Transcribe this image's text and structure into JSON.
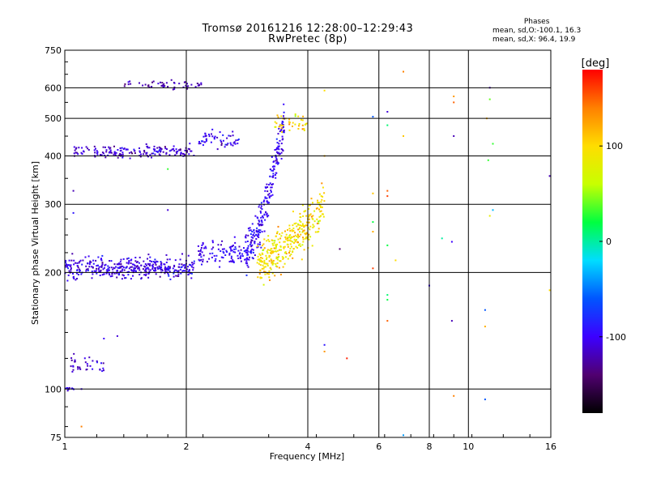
{
  "header": {
    "title_line1": "Tromsø 20161216 12:28:00–12:29:43",
    "title_line2": "RwPretec (8p)"
  },
  "stats": {
    "heading": "Phases",
    "line1": "mean, sd,O:-100.1, 16.3",
    "line2": "mean, sd,X:  96.4, 19.9"
  },
  "colorbar": {
    "label": "[deg]",
    "ticks": [
      "100",
      "0",
      "-100"
    ],
    "tick_values": [
      100,
      0,
      -100
    ],
    "range": [
      -180,
      180
    ],
    "colors": [
      "#000000",
      "#500070",
      "#3c00ff",
      "#0055ff",
      "#00ddff",
      "#00ff40",
      "#c8ff00",
      "#ffdd00",
      "#ff8000",
      "#ff0000"
    ]
  },
  "chart_data": {
    "type": "scatter",
    "title": "Tromsø 20161216 12:28:00–12:29:43\nRwPretec (8p)",
    "xlabel": "Frequency [MHz]",
    "ylabel": "Stationary phase Virtual Height [km]",
    "x_scale": "log",
    "y_scale": "log",
    "xlim": [
      1,
      16
    ],
    "ylim": [
      75,
      750
    ],
    "x_ticks": [
      1,
      2,
      4,
      6,
      8,
      10,
      16
    ],
    "y_ticks": [
      75,
      100,
      200,
      300,
      400,
      500,
      600,
      750
    ],
    "grid": true,
    "traces": [
      {
        "name": "",
        "x_range": [
          1.0,
          2.1
        ],
        "h_center": 205,
        "h_jitter": 0.06,
        "phase": -105,
        "phase_sd": 12,
        "count": 380
      },
      {
        "name": "",
        "x_range": [
          2.1,
          2.9
        ],
        "h_center": 225,
        "h_jitter": 0.07,
        "phase": -100,
        "phase_sd": 10,
        "count": 110
      },
      {
        "name": "",
        "x_range": [
          1.05,
          2.1
        ],
        "h_center": 410,
        "h_jitter": 0.035,
        "phase": -110,
        "phase_sd": 12,
        "count": 170
      },
      {
        "name": "",
        "x_range": [
          2.15,
          2.7
        ],
        "h_center": 440,
        "h_jitter": 0.05,
        "phase": -100,
        "phase_sd": 12,
        "count": 55
      },
      {
        "name": "",
        "x_range": [
          1.4,
          2.2
        ],
        "h_center": 610,
        "h_jitter": 0.025,
        "phase": -120,
        "phase_sd": 10,
        "count": 50
      },
      {
        "name": "",
        "x_range": [
          2.8,
          3.5
        ],
        "h_center_range": [
          230,
          490
        ],
        "h_jitter": 0.12,
        "phase": -100,
        "phase_sd": 10,
        "count": 230
      },
      {
        "name": "",
        "x_range": [
          3.0,
          4.4
        ],
        "h_center_range": [
          215,
          300
        ],
        "h_jitter": 0.12,
        "phase": 95,
        "phase_sd": 18,
        "count": 340
      },
      {
        "name": "",
        "x_range": [
          3.3,
          4.0
        ],
        "h_center": 480,
        "h_jitter": 0.06,
        "phase": 100,
        "phase_sd": 20,
        "count": 40
      },
      {
        "name": "",
        "x_range": [
          1.02,
          1.25
        ],
        "h_center": 115,
        "h_jitter": 0.05,
        "phase": -110,
        "phase_sd": 10,
        "count": 35
      },
      {
        "name": "",
        "x_range": [
          1.0,
          1.06
        ],
        "h_center": 100,
        "h_jitter": 0.01,
        "phase": -100,
        "phase_sd": 10,
        "count": 12
      }
    ],
    "sparse_points": [
      [
        5.8,
        505,
        -60
      ],
      [
        6.3,
        520,
        -110
      ],
      [
        6.3,
        480,
        10
      ],
      [
        6.9,
        450,
        110
      ],
      [
        6.9,
        660,
        140
      ],
      [
        9.2,
        570,
        130
      ],
      [
        9.2,
        550,
        150
      ],
      [
        9.2,
        450,
        -120
      ],
      [
        11.3,
        600,
        -120
      ],
      [
        11.3,
        560,
        40
      ],
      [
        11.1,
        500,
        120
      ],
      [
        11.5,
        430,
        30
      ],
      [
        11.2,
        390,
        30
      ],
      [
        11.5,
        290,
        -30
      ],
      [
        11.3,
        280,
        80
      ],
      [
        6.3,
        325,
        150
      ],
      [
        6.3,
        315,
        160
      ],
      [
        5.8,
        320,
        110
      ],
      [
        5.8,
        270,
        20
      ],
      [
        5.8,
        255,
        120
      ],
      [
        6.3,
        235,
        20
      ],
      [
        6.3,
        175,
        10
      ],
      [
        6.3,
        170,
        20
      ],
      [
        6.3,
        150,
        150
      ],
      [
        8.0,
        185,
        -100
      ],
      [
        8.6,
        245,
        0
      ],
      [
        9.1,
        240,
        -100
      ],
      [
        9.1,
        150,
        -120
      ],
      [
        11.0,
        160,
        -60
      ],
      [
        11.0,
        145,
        120
      ],
      [
        6.6,
        215,
        100
      ],
      [
        5.8,
        205,
        160
      ],
      [
        4.8,
        230,
        -140
      ],
      [
        4.4,
        400,
        120
      ],
      [
        4.4,
        590,
        100
      ],
      [
        4.4,
        130,
        -90
      ],
      [
        4.4,
        125,
        130
      ],
      [
        5.0,
        120,
        170
      ],
      [
        9.2,
        96,
        140
      ],
      [
        11.0,
        94,
        -60
      ],
      [
        6.9,
        76,
        -40
      ],
      [
        15.9,
        355,
        -120
      ],
      [
        15.9,
        180,
        100
      ],
      [
        1.8,
        370,
        30
      ],
      [
        1.8,
        290,
        -110
      ],
      [
        1.1,
        100,
        -100
      ],
      [
        1.1,
        80,
        140
      ],
      [
        1.35,
        137,
        -110
      ],
      [
        1.25,
        135,
        -100
      ],
      [
        1.05,
        325,
        -120
      ],
      [
        1.05,
        285,
        -90
      ]
    ]
  }
}
